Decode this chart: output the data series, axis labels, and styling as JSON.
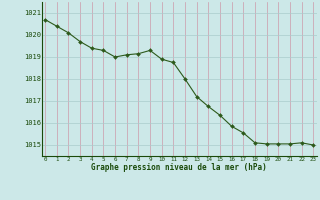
{
  "x": [
    0,
    1,
    2,
    3,
    4,
    5,
    6,
    7,
    8,
    9,
    10,
    11,
    12,
    13,
    14,
    15,
    16,
    17,
    18,
    19,
    20,
    21,
    22,
    23
  ],
  "y": [
    1020.7,
    1020.4,
    1020.1,
    1019.7,
    1019.4,
    1019.3,
    1019.0,
    1019.1,
    1019.15,
    1019.3,
    1018.9,
    1018.75,
    1018.0,
    1017.2,
    1016.75,
    1016.35,
    1015.85,
    1015.55,
    1015.1,
    1015.05,
    1015.05,
    1015.05,
    1015.1,
    1015.0
  ],
  "line_color": "#2d5a1b",
  "marker_color": "#2d5a1b",
  "bg_color": "#cce8e8",
  "grid_color_v": "#cc99aa",
  "grid_color_h": "#aacccc",
  "xlabel": "Graphe pression niveau de la mer (hPa)",
  "xlabel_color": "#1a4a0a",
  "tick_color": "#1a4a0a",
  "ylim": [
    1014.5,
    1021.5
  ],
  "yticks": [
    1015,
    1016,
    1017,
    1018,
    1019,
    1020,
    1021
  ],
  "xticks": [
    0,
    1,
    2,
    3,
    4,
    5,
    6,
    7,
    8,
    9,
    10,
    11,
    12,
    13,
    14,
    15,
    16,
    17,
    18,
    19,
    20,
    21,
    22,
    23
  ]
}
